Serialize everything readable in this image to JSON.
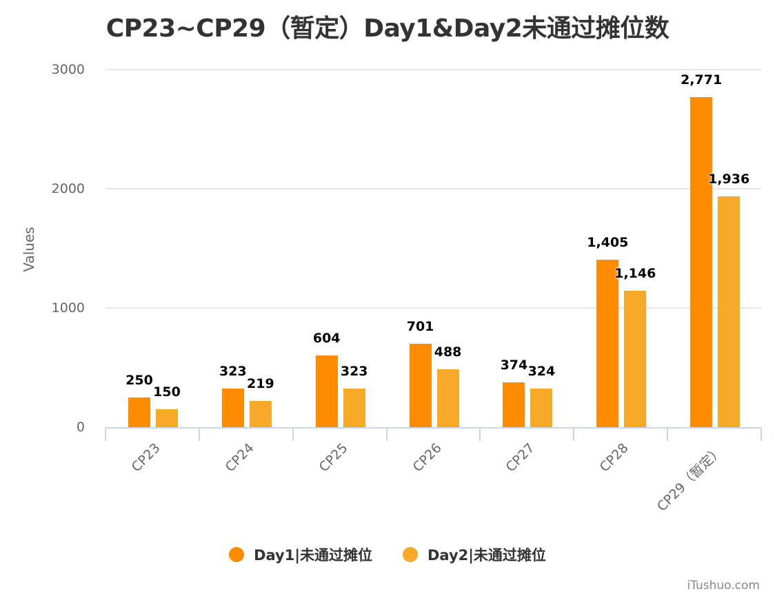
{
  "chart_data": {
    "type": "bar",
    "title": "CP23~CP29（暂定）Day1&Day2未通过摊位数",
    "xlabel": "",
    "ylabel": "Values",
    "ylim": [
      0,
      3000
    ],
    "yticks": [
      0,
      1000,
      2000,
      3000
    ],
    "grid": true,
    "legend_position": "bottom",
    "categories": [
      "CP23",
      "CP24",
      "CP25",
      "CP26",
      "CP27",
      "CP28",
      "CP29（暂定）"
    ],
    "series": [
      {
        "name": "Day1|未通过摊位",
        "color": "#FF8C00",
        "values": [
          250,
          323,
          604,
          701,
          374,
          1405,
          2771
        ],
        "labels": [
          "250",
          "323",
          "604",
          "701",
          "374",
          "1,405",
          "2,771"
        ]
      },
      {
        "name": "Day2|未通过摊位",
        "color": "#F7A928",
        "values": [
          150,
          219,
          323,
          488,
          324,
          1146,
          1936
        ],
        "labels": [
          "150",
          "219",
          "323",
          "488",
          "324",
          "1,146",
          "1,936"
        ]
      }
    ]
  },
  "credit": "iTushuo.com"
}
